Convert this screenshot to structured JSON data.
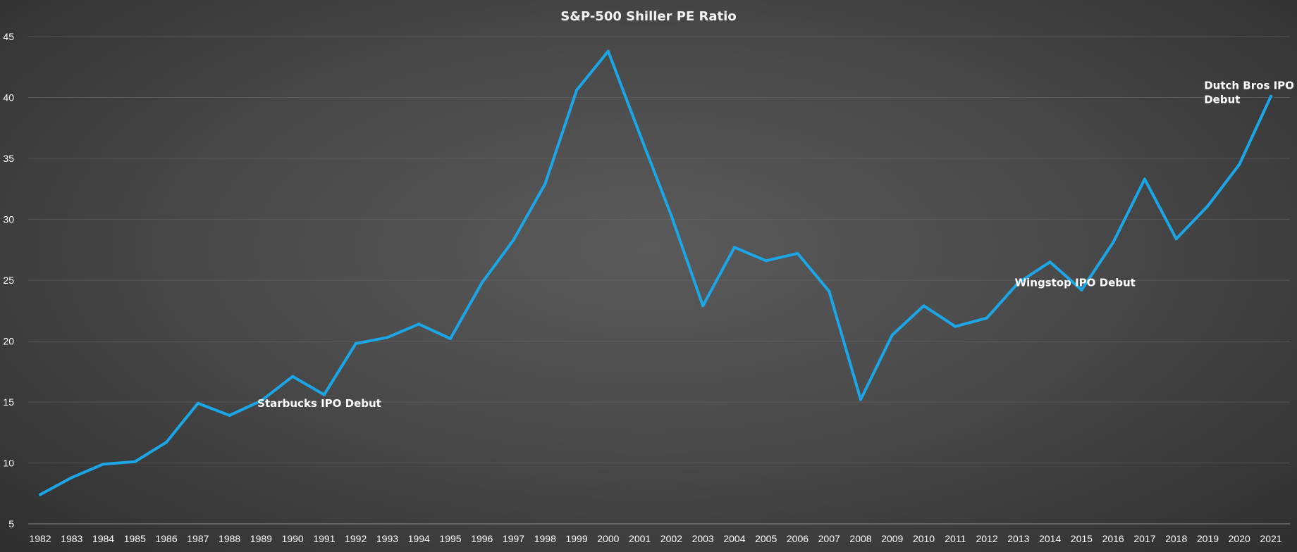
{
  "chart_data": {
    "type": "line",
    "title": "S&P-500 Shiller PE Ratio",
    "xlabel": "",
    "ylabel": "",
    "ylim": [
      5,
      45
    ],
    "yticks": [
      5,
      10,
      15,
      20,
      25,
      30,
      35,
      40,
      45
    ],
    "grid": true,
    "legend": "none",
    "line_color": "#1ba6e8",
    "categories": [
      "1982",
      "1983",
      "1984",
      "1985",
      "1986",
      "1987",
      "1988",
      "1989",
      "1990",
      "1991",
      "1992",
      "1993",
      "1994",
      "1995",
      "1996",
      "1997",
      "1998",
      "1999",
      "2000",
      "2001",
      "2002",
      "2003",
      "2004",
      "2005",
      "2006",
      "2007",
      "2008",
      "2009",
      "2010",
      "2011",
      "2012",
      "2013",
      "2014",
      "2015",
      "2016",
      "2017",
      "2018",
      "2019",
      "2020",
      "2021"
    ],
    "values": [
      7.4,
      8.8,
      9.9,
      10.1,
      11.7,
      14.9,
      13.9,
      15.1,
      17.1,
      15.6,
      19.8,
      20.3,
      21.4,
      20.2,
      24.8,
      28.3,
      32.9,
      40.6,
      43.8,
      37.0,
      30.3,
      22.9,
      27.7,
      26.6,
      27.2,
      24.1,
      15.2,
      20.5,
      22.9,
      21.2,
      21.9,
      24.8,
      26.5,
      24.2,
      28.1,
      33.3,
      28.4,
      31.1,
      34.5,
      40.1
    ],
    "annotations": [
      {
        "id": "starbucks",
        "lines": [
          "Starbucks IPO Debut"
        ],
        "anchor_year": "1990",
        "anchor_value": 14.6
      },
      {
        "id": "wingstop",
        "lines": [
          "Wingstop IPO Debut"
        ],
        "anchor_year": "2014",
        "anchor_value": 24.5
      },
      {
        "id": "dutchbros",
        "lines": [
          "Dutch Bros IPO",
          "Debut"
        ],
        "anchor_year": "2020",
        "anchor_value": 40.7
      }
    ]
  }
}
